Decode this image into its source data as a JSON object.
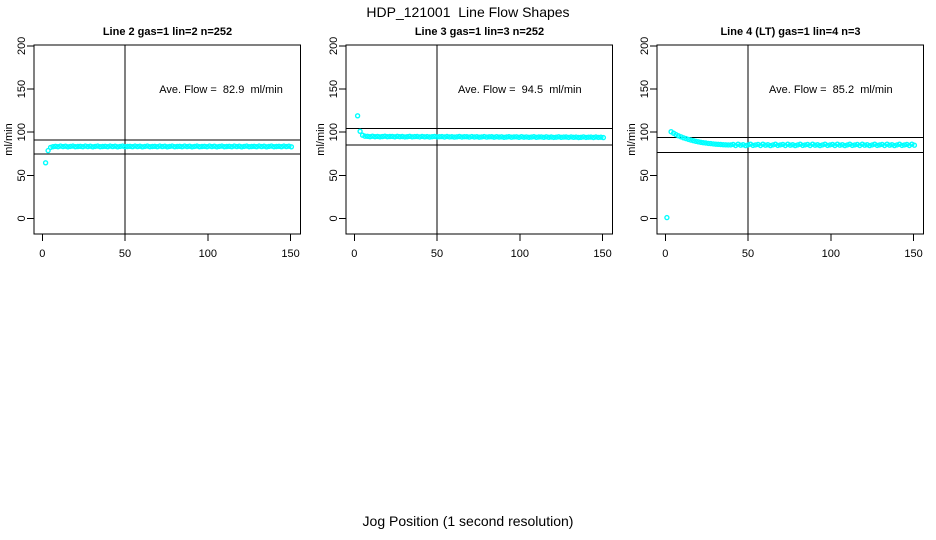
{
  "figure": {
    "title": "HDP_121001  Line Flow Shapes",
    "xlabel": "Jog Position (1 second resolution)",
    "background": "#ffffff",
    "point_color": "#00ffff",
    "line_color": "#000000"
  },
  "chart_data": [
    {
      "type": "scatter",
      "title": "Line 2 gas=1 lin=2 n=252",
      "ylabel": "ml/min",
      "annotation": "Ave. Flow =  82.9  ml/min",
      "annotation_pos": {
        "x": 108,
        "y": 150
      },
      "ave_flow": 82.9,
      "n": 252,
      "xticks": [
        0,
        50,
        100,
        150
      ],
      "yticks": [
        0,
        50,
        100,
        150,
        200
      ],
      "xlim": [
        -5,
        156
      ],
      "ylim": [
        -18,
        201
      ],
      "vline": 50,
      "hlines": [
        91.2,
        74.6
      ],
      "grid": false,
      "x": [
        2,
        3.5,
        5,
        6.5,
        8,
        9.5,
        11,
        12.5,
        14,
        15.5,
        17,
        18.5,
        20,
        21.5,
        23,
        24.5,
        26,
        27.5,
        29,
        30.5,
        32,
        33.5,
        35,
        36.5,
        38,
        39.5,
        41,
        42.5,
        44,
        45.5,
        47,
        48.5,
        50,
        51.5,
        53,
        54.5,
        56,
        57.5,
        59,
        60.5,
        62,
        63.5,
        65,
        66.5,
        68,
        69.5,
        71,
        72.5,
        74,
        75.5,
        77,
        78.5,
        80,
        81.5,
        83,
        84.5,
        86,
        87.5,
        89,
        90.5,
        92,
        93.5,
        95,
        96.5,
        98,
        99.5,
        101,
        102.5,
        104,
        105.5,
        107,
        108.5,
        110,
        111.5,
        113,
        114.5,
        116,
        117.5,
        119,
        120.5,
        122,
        123.5,
        125,
        126.5,
        128,
        129.5,
        131,
        132.5,
        134,
        135.5,
        137,
        138.5,
        140,
        141.5,
        143,
        144.5,
        146,
        147.5,
        149,
        150.5
      ],
      "y": [
        64.5,
        78.6,
        82.3,
        83.2,
        83.6,
        83.1,
        83.8,
        83.3,
        83.7,
        83,
        83.5,
        83.9,
        83.2,
        83.4,
        83.6,
        83.1,
        83.8,
        83.3,
        83.7,
        83,
        83.5,
        83.9,
        83.2,
        83.4,
        83.6,
        83.1,
        83.8,
        83.3,
        83.7,
        83,
        83.5,
        83.9,
        83.2,
        83.4,
        83.6,
        83.1,
        83.8,
        83.3,
        83.7,
        83,
        83.5,
        83.9,
        83.2,
        83.4,
        83.6,
        83.1,
        83.8,
        83.3,
        83.7,
        83,
        83.5,
        83.9,
        83.2,
        83.4,
        83.6,
        83.1,
        83.8,
        83.3,
        83.7,
        83,
        83.5,
        83.9,
        83.2,
        83.4,
        83.6,
        83.1,
        83.8,
        83.3,
        83.7,
        83,
        83.5,
        83.9,
        83.2,
        83.4,
        83.6,
        83.1,
        83.8,
        83.3,
        83.7,
        83,
        83.5,
        83.9,
        83.2,
        83.4,
        83.6,
        83.1,
        83.8,
        83.3,
        83.7,
        83,
        83.5,
        83.9,
        83.2,
        83.4,
        83.6,
        83.1,
        83.8,
        83.3,
        83.7,
        83
      ]
    },
    {
      "type": "scatter",
      "title": "Line 3 gas=1 lin=3 n=252",
      "ylabel": "ml/min",
      "annotation": "Ave. Flow =  94.5  ml/min",
      "annotation_pos": {
        "x": 100,
        "y": 150
      },
      "ave_flow": 94.5,
      "n": 252,
      "xticks": [
        0,
        50,
        100,
        150
      ],
      "yticks": [
        0,
        50,
        100,
        150,
        200
      ],
      "xlim": [
        -5,
        156
      ],
      "ylim": [
        -18,
        201
      ],
      "vline": 50,
      "hlines": [
        104.0,
        85.1
      ],
      "grid": false,
      "x": [
        2,
        3.5,
        5,
        6.5,
        8,
        9.5,
        11,
        12.5,
        14,
        15.5,
        17,
        18.5,
        20,
        21.5,
        23,
        24.5,
        26,
        27.5,
        29,
        30.5,
        32,
        33.5,
        35,
        36.5,
        38,
        39.5,
        41,
        42.5,
        44,
        45.5,
        47,
        48.5,
        50,
        51.5,
        53,
        54.5,
        56,
        57.5,
        59,
        60.5,
        62,
        63.5,
        65,
        66.5,
        68,
        69.5,
        71,
        72.5,
        74,
        75.5,
        77,
        78.5,
        80,
        81.5,
        83,
        84.5,
        86,
        87.5,
        89,
        90.5,
        92,
        93.5,
        95,
        96.5,
        98,
        99.5,
        101,
        102.5,
        104,
        105.5,
        107,
        108.5,
        110,
        111.5,
        113,
        114.5,
        116,
        117.5,
        119,
        120.5,
        122,
        123.5,
        125,
        126.5,
        128,
        129.5,
        131,
        132.5,
        134,
        135.5,
        137,
        138.5,
        140,
        141.5,
        143,
        144.5,
        146,
        147.5,
        149,
        150.5
      ],
      "y": [
        119,
        101,
        96.5,
        95.3,
        95.2,
        94.7,
        95.3,
        94.8,
        95.1,
        94.6,
        94.9,
        95.3,
        94.7,
        95,
        95.1,
        94.6,
        95.2,
        94.7,
        95,
        94.5,
        94.8,
        95.2,
        94.6,
        94.9,
        95,
        94.5,
        95.1,
        94.6,
        94.9,
        94.4,
        94.7,
        95.1,
        94.5,
        94.8,
        94.9,
        94.4,
        95,
        94.5,
        94.8,
        94.3,
        94.6,
        95,
        94.4,
        94.7,
        94.8,
        94.3,
        94.9,
        94.4,
        94.7,
        94.2,
        94.5,
        94.9,
        94.3,
        94.6,
        94.7,
        94.2,
        94.8,
        94.3,
        94.6,
        94.1,
        94.4,
        94.8,
        94.2,
        94.5,
        94.6,
        94.1,
        94.7,
        94.2,
        94.5,
        94,
        94.3,
        94.7,
        94.1,
        94.4,
        94.5,
        94,
        94.6,
        94.1,
        94.4,
        93.9,
        94.2,
        94.6,
        94,
        94.3,
        94.4,
        93.9,
        94.5,
        94,
        94.3,
        93.8,
        94.1,
        94.5,
        93.9,
        94.2,
        94.3,
        93.8,
        94.4,
        93.9,
        94.2,
        93.7
      ]
    },
    {
      "type": "scatter",
      "title": "Line 4 (LT) gas=1 lin=4 n=3",
      "ylabel": "ml/min",
      "annotation": "Ave. Flow =  85.2  ml/min",
      "annotation_pos": {
        "x": 100,
        "y": 150
      },
      "ave_flow": 85.2,
      "n": 3,
      "xticks": [
        0,
        50,
        100,
        150
      ],
      "yticks": [
        0,
        50,
        100,
        150,
        200
      ],
      "xlim": [
        -5,
        156
      ],
      "ylim": [
        -18,
        201
      ],
      "vline": 50,
      "hlines": [
        93.7,
        76.7
      ],
      "grid": false,
      "x": [
        1,
        3.5,
        5,
        6.5,
        8,
        9.5,
        11,
        12.5,
        14,
        15.5,
        17,
        18.5,
        20,
        21.5,
        23,
        24.5,
        26,
        27.5,
        29,
        30.5,
        32,
        33.5,
        35,
        36.5,
        38,
        39.5,
        41,
        42.5,
        44,
        45.5,
        47,
        48.5,
        50,
        51.5,
        53,
        54.5,
        56,
        57.5,
        59,
        60.5,
        62,
        63.5,
        65,
        66.5,
        68,
        69.5,
        71,
        72.5,
        74,
        75.5,
        77,
        78.5,
        80,
        81.5,
        83,
        84.5,
        86,
        87.5,
        89,
        90.5,
        92,
        93.5,
        95,
        96.5,
        98,
        99.5,
        101,
        102.5,
        104,
        105.5,
        107,
        108.5,
        110,
        111.5,
        113,
        114.5,
        116,
        117.5,
        119,
        120.5,
        122,
        123.5,
        125,
        126.5,
        128,
        129.5,
        131,
        132.5,
        134,
        135.5,
        137,
        138.5,
        140,
        141.5,
        143,
        144.5,
        146,
        147.5,
        149,
        150.5
      ],
      "y": [
        1,
        100.5,
        98.8,
        97.2,
        95.8,
        94.6,
        93.5,
        92.5,
        91.6,
        90.8,
        90.1,
        89.4,
        88.8,
        88.3,
        87.8,
        87.4,
        87,
        86.7,
        86.4,
        86.1,
        85.9,
        85.7,
        85.5,
        85.4,
        85.3,
        85.2,
        85.8,
        84.6,
        86,
        84.9,
        85.5,
        84.4,
        85.2,
        86.1,
        84.7,
        85.3,
        85.8,
        84.6,
        86,
        84.9,
        85.5,
        84.4,
        85.2,
        86.1,
        84.7,
        85.3,
        85.8,
        84.6,
        86,
        84.9,
        85.5,
        84.4,
        85.2,
        86.1,
        84.7,
        85.3,
        85.8,
        84.6,
        86,
        84.9,
        85.5,
        84.4,
        85.2,
        86.1,
        84.7,
        85.3,
        85.8,
        84.6,
        86,
        84.9,
        85.5,
        84.4,
        85.2,
        86.1,
        84.7,
        85.3,
        85.8,
        84.6,
        86,
        84.9,
        85.5,
        84.4,
        85.2,
        86.1,
        84.7,
        85.3,
        85.8,
        84.6,
        86,
        84.9,
        85.5,
        84.4,
        85.2,
        86.1,
        84.7,
        85.3,
        85.8,
        84.6,
        86,
        84.9
      ]
    }
  ]
}
